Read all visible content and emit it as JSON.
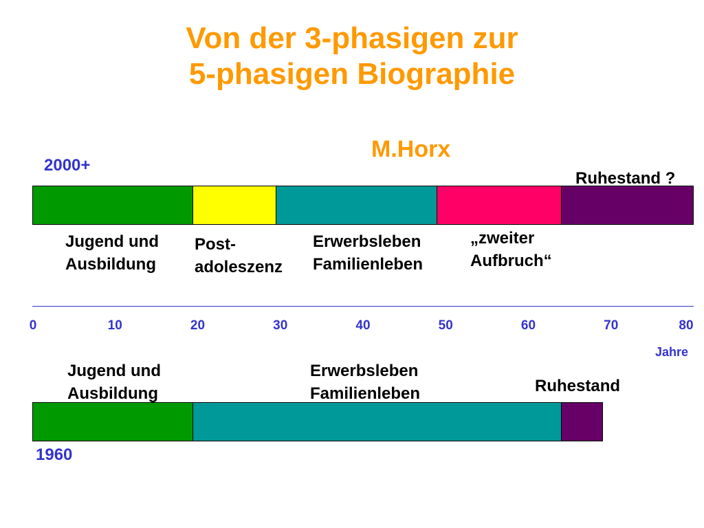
{
  "title": {
    "line1": "Von der 3-phasigen zur",
    "line2": "5-phasigen Biographie"
  },
  "author": "M.Horx",
  "axis": {
    "unit": "Jahre",
    "min": 0,
    "max": 80,
    "ticks": [
      "0",
      "10",
      "20",
      "30",
      "40",
      "50",
      "60",
      "70",
      "80"
    ],
    "line_color": "#3333CC"
  },
  "timelines": [
    {
      "year_label": "2000+",
      "phases": [
        {
          "from": 0,
          "to": 19.5,
          "color": "#009900",
          "label": "Jugend und\nAusbildung"
        },
        {
          "from": 19.5,
          "to": 29.5,
          "color": "#FFFF00",
          "label": "Post-\nadoleszenz"
        },
        {
          "from": 29.5,
          "to": 49,
          "color": "#009999",
          "label": "Erwerbsleben\nFamilienleben"
        },
        {
          "from": 49,
          "to": 64,
          "color": "#FF0066",
          "label": "„zweiter\nAufbruch“"
        },
        {
          "from": 64,
          "to": 80,
          "color": "#660066",
          "label": "Ruhestand ?"
        }
      ]
    },
    {
      "year_label": "1960",
      "phases": [
        {
          "from": 0,
          "to": 19.5,
          "color": "#009900",
          "label": "Jugend und\nAusbildung"
        },
        {
          "from": 19.5,
          "to": 64,
          "color": "#009999",
          "label": "Erwerbsleben\nFamilienleben"
        },
        {
          "from": 64,
          "to": 69,
          "color": "#660066",
          "label": "Ruhestand"
        }
      ]
    }
  ]
}
